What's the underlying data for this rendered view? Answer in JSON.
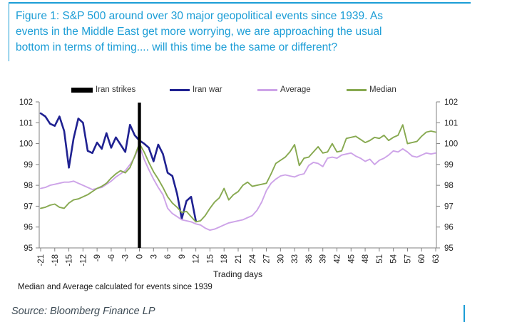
{
  "header": {
    "line1": "Figure 1: S&P 500 around over 30 major geopolitical events since 1939. As",
    "line2": "events in the Middle East get more worrying, we are approaching the usual",
    "line3": "bottom in terms of timing.... will this time be the same or different?"
  },
  "colors": {
    "accent": "#1b9dd6",
    "iran_strikes": "#000000",
    "iran_war": "#1f2191",
    "average": "#cda3e8",
    "median": "#87a950",
    "axis": "#808080",
    "tick_label": "#262626",
    "text": "#1a1a1a",
    "source_text": "#3c4a54"
  },
  "legend": {
    "items": [
      {
        "label": "Iran strikes",
        "swatch": "bar",
        "color": "#000000"
      },
      {
        "label": "Iran war",
        "swatch": "line",
        "color": "#1f2191"
      },
      {
        "label": "Average",
        "swatch": "line",
        "color": "#cda3e8"
      },
      {
        "label": "Median",
        "swatch": "line",
        "color": "#87a950"
      }
    ]
  },
  "chart_data": {
    "type": "line",
    "title": "",
    "xlabel": "Trading days",
    "ylabel": "",
    "footnote": "Median and Average calculated for events since 1939",
    "xlim": [
      -21,
      63
    ],
    "ylim": [
      95,
      102
    ],
    "grid": false,
    "legend_position": "top",
    "yticks": [
      95,
      96,
      97,
      98,
      99,
      100,
      101,
      102
    ],
    "xticks": [
      -21,
      -18,
      -15,
      -12,
      -9,
      -6,
      -3,
      0,
      3,
      6,
      9,
      12,
      15,
      18,
      21,
      24,
      27,
      30,
      33,
      36,
      39,
      42,
      45,
      48,
      51,
      54,
      57,
      60,
      63
    ],
    "event_marker": {
      "label": "Iran strikes",
      "day": 0,
      "color": "#000000"
    },
    "series": [
      {
        "name": "Iran war",
        "color": "#1f2191",
        "width": 2.6,
        "x_start": -21,
        "values": [
          101.45,
          101.3,
          100.95,
          100.85,
          101.3,
          100.6,
          98.85,
          100.25,
          101.2,
          101.0,
          99.65,
          99.55,
          100.05,
          99.75,
          100.5,
          99.8,
          100.3,
          99.95,
          99.6,
          100.9,
          100.4,
          100.15,
          100.0,
          99.8,
          99.15,
          99.95,
          99.5,
          98.6,
          98.45,
          97.6,
          96.4,
          97.25,
          97.45,
          96.3
        ]
      },
      {
        "name": "Average",
        "color": "#cda3e8",
        "width": 1.9,
        "x_start": -21,
        "values": [
          97.85,
          97.9,
          98.0,
          98.05,
          98.1,
          98.15,
          98.15,
          98.2,
          98.1,
          98.0,
          97.9,
          97.8,
          97.85,
          97.9,
          98.05,
          98.2,
          98.4,
          98.55,
          98.7,
          99.0,
          99.35,
          99.9,
          99.25,
          98.75,
          98.3,
          97.9,
          97.55,
          96.9,
          96.65,
          96.5,
          96.35,
          96.3,
          96.25,
          96.15,
          96.1,
          95.95,
          95.85,
          95.9,
          96.0,
          96.1,
          96.2,
          96.25,
          96.3,
          96.35,
          96.45,
          96.55,
          96.8,
          97.2,
          97.75,
          98.1,
          98.3,
          98.45,
          98.5,
          98.45,
          98.4,
          98.5,
          98.55,
          98.95,
          99.1,
          99.05,
          98.9,
          99.3,
          99.35,
          99.3,
          99.45,
          99.5,
          99.55,
          99.4,
          99.3,
          99.15,
          99.25,
          99.0,
          99.2,
          99.3,
          99.45,
          99.65,
          99.6,
          99.75,
          99.6,
          99.4,
          99.35,
          99.45,
          99.55,
          99.5,
          99.55
        ]
      },
      {
        "name": "Median",
        "color": "#87a950",
        "width": 1.9,
        "x_start": -21,
        "values": [
          96.9,
          96.95,
          97.05,
          97.1,
          96.95,
          96.9,
          97.15,
          97.3,
          97.35,
          97.45,
          97.55,
          97.7,
          97.85,
          97.95,
          98.1,
          98.35,
          98.55,
          98.7,
          98.6,
          98.85,
          99.4,
          100.0,
          99.6,
          99.1,
          98.65,
          98.3,
          97.9,
          97.45,
          97.15,
          96.95,
          96.7,
          96.75,
          96.5,
          96.25,
          96.3,
          96.55,
          96.9,
          97.2,
          97.4,
          97.85,
          97.3,
          97.55,
          97.7,
          98.0,
          98.15,
          97.95,
          98.0,
          98.05,
          98.1,
          98.55,
          99.05,
          99.2,
          99.35,
          99.6,
          99.95,
          98.95,
          99.3,
          99.35,
          99.6,
          99.85,
          99.55,
          99.6,
          100.0,
          99.6,
          99.65,
          100.25,
          100.3,
          100.35,
          100.2,
          100.05,
          100.15,
          100.3,
          100.25,
          100.4,
          100.15,
          100.3,
          100.4,
          100.9,
          100.0,
          100.05,
          100.1,
          100.35,
          100.55,
          100.6,
          100.55
        ]
      }
    ]
  },
  "source": {
    "text": "Source: Bloomberg Finance LP"
  }
}
